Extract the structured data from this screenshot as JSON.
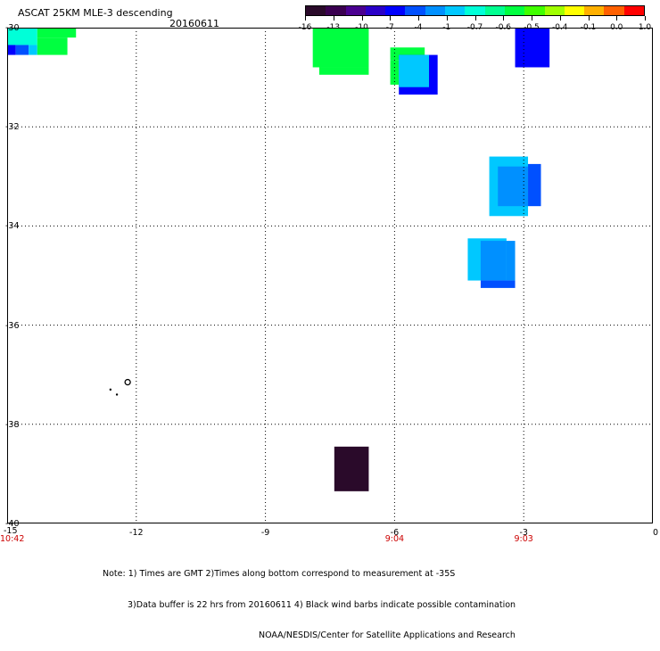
{
  "header": {
    "title": "ASCAT 25KM MLE-3 descending",
    "date": "20160611"
  },
  "colorbar": {
    "tick_labels": [
      "-16",
      "-13",
      "-10",
      "-7",
      "-4",
      "-1",
      "-0.7",
      "-0.6",
      "-0.5",
      "-0.4",
      "-0.1",
      "0.0",
      "1.0"
    ],
    "colors": [
      "#2a0a2a",
      "#3a0050",
      "#4a0090",
      "#2a00c8",
      "#0000ff",
      "#0050ff",
      "#0090ff",
      "#00c8ff",
      "#00ffd8",
      "#00ff90",
      "#00ff40",
      "#40ff00",
      "#a0ff00",
      "#ffff00",
      "#ffb000",
      "#ff6000",
      "#ff0000"
    ]
  },
  "map": {
    "lat_labels": [
      "-30",
      "-32",
      "-34",
      "-36",
      "-38",
      "-40"
    ],
    "lon_labels": [
      "-15",
      "-12",
      "-9",
      "-6",
      "-3",
      "0"
    ],
    "time_labels": [
      "10:42",
      "9:04",
      "9:03"
    ],
    "time_label_lons": [
      -15,
      -6,
      -3
    ],
    "time_label_color": "#cc0000",
    "cells": [
      {
        "lon": [
          -15,
          -14.3
        ],
        "lat": [
          -30.0,
          -30.35
        ],
        "color": "#00ffd8"
      },
      {
        "lon": [
          -14.3,
          -13.4
        ],
        "lat": [
          -30.0,
          -30.2
        ],
        "color": "#00ff40"
      },
      {
        "lon": [
          -15,
          -14.8
        ],
        "lat": [
          -30.35,
          -30.55
        ],
        "color": "#0000ff"
      },
      {
        "lon": [
          -14.8,
          -14.5
        ],
        "lat": [
          -30.35,
          -30.55
        ],
        "color": "#0050ff"
      },
      {
        "lon": [
          -14.5,
          -14.3
        ],
        "lat": [
          -30.35,
          -30.55
        ],
        "color": "#00c8ff"
      },
      {
        "lon": [
          -14.3,
          -13.6
        ],
        "lat": [
          -30.2,
          -30.55
        ],
        "color": "#00ff40"
      },
      {
        "lon": [
          -7.9,
          -6.6
        ],
        "lat": [
          -30.0,
          -30.8
        ],
        "color": "#00ff40"
      },
      {
        "lon": [
          -7.75,
          -6.6
        ],
        "lat": [
          -30.8,
          -30.95
        ],
        "color": "#00ff40"
      },
      {
        "lon": [
          -6.1,
          -5.3
        ],
        "lat": [
          -30.4,
          -30.65
        ],
        "color": "#00ff40"
      },
      {
        "lon": [
          -5.9,
          -5.0
        ],
        "lat": [
          -30.55,
          -31.35
        ],
        "color": "#0000ff"
      },
      {
        "lon": [
          -6.1,
          -5.9
        ],
        "lat": [
          -30.65,
          -31.15
        ],
        "color": "#00ff40"
      },
      {
        "lon": [
          -5.9,
          -5.2
        ],
        "lat": [
          -30.55,
          -31.2
        ],
        "color": "#00c8ff"
      },
      {
        "lon": [
          -3.2,
          -2.4
        ],
        "lat": [
          -30.0,
          -30.8
        ],
        "color": "#0000ff"
      },
      {
        "lon": [
          -3.8,
          -2.9
        ],
        "lat": [
          -32.6,
          -33.8
        ],
        "color": "#00c8ff"
      },
      {
        "lon": [
          -3.6,
          -2.9
        ],
        "lat": [
          -32.8,
          -33.6
        ],
        "color": "#0090ff"
      },
      {
        "lon": [
          -2.9,
          -2.6
        ],
        "lat": [
          -32.75,
          -33.6
        ],
        "color": "#0050ff"
      },
      {
        "lon": [
          -4.3,
          -3.4
        ],
        "lat": [
          -34.25,
          -35.1
        ],
        "color": "#00c8ff"
      },
      {
        "lon": [
          -4.0,
          -3.4
        ],
        "lat": [
          -34.3,
          -35.1
        ],
        "color": "#0090ff"
      },
      {
        "lon": [
          -4.0,
          -3.2
        ],
        "lat": [
          -35.1,
          -35.25
        ],
        "color": "#0050ff"
      },
      {
        "lon": [
          -3.4,
          -3.2
        ],
        "lat": [
          -34.3,
          -35.1
        ],
        "color": "#0090ff"
      },
      {
        "lon": [
          -7.4,
          -6.6
        ],
        "lat": [
          -38.45,
          -39.35
        ],
        "color": "#2a0a2a"
      }
    ],
    "barb_points": [
      {
        "lon": -12.2,
        "lat": -37.15,
        "kind": "circle"
      },
      {
        "lon": -12.6,
        "lat": -37.3,
        "kind": "dot"
      },
      {
        "lon": -12.45,
        "lat": -37.4,
        "kind": "dot"
      }
    ]
  },
  "notes": {
    "line1": "Note: 1) Times are GMT 2)Times along bottom correspond to measurement at -35S",
    "line2": "3)Data buffer is 22 hrs from 20160611 4) Black wind barbs indicate possible contamination",
    "line3": "NOAA/NESDIS/Center for Satellite Applications and Research"
  }
}
